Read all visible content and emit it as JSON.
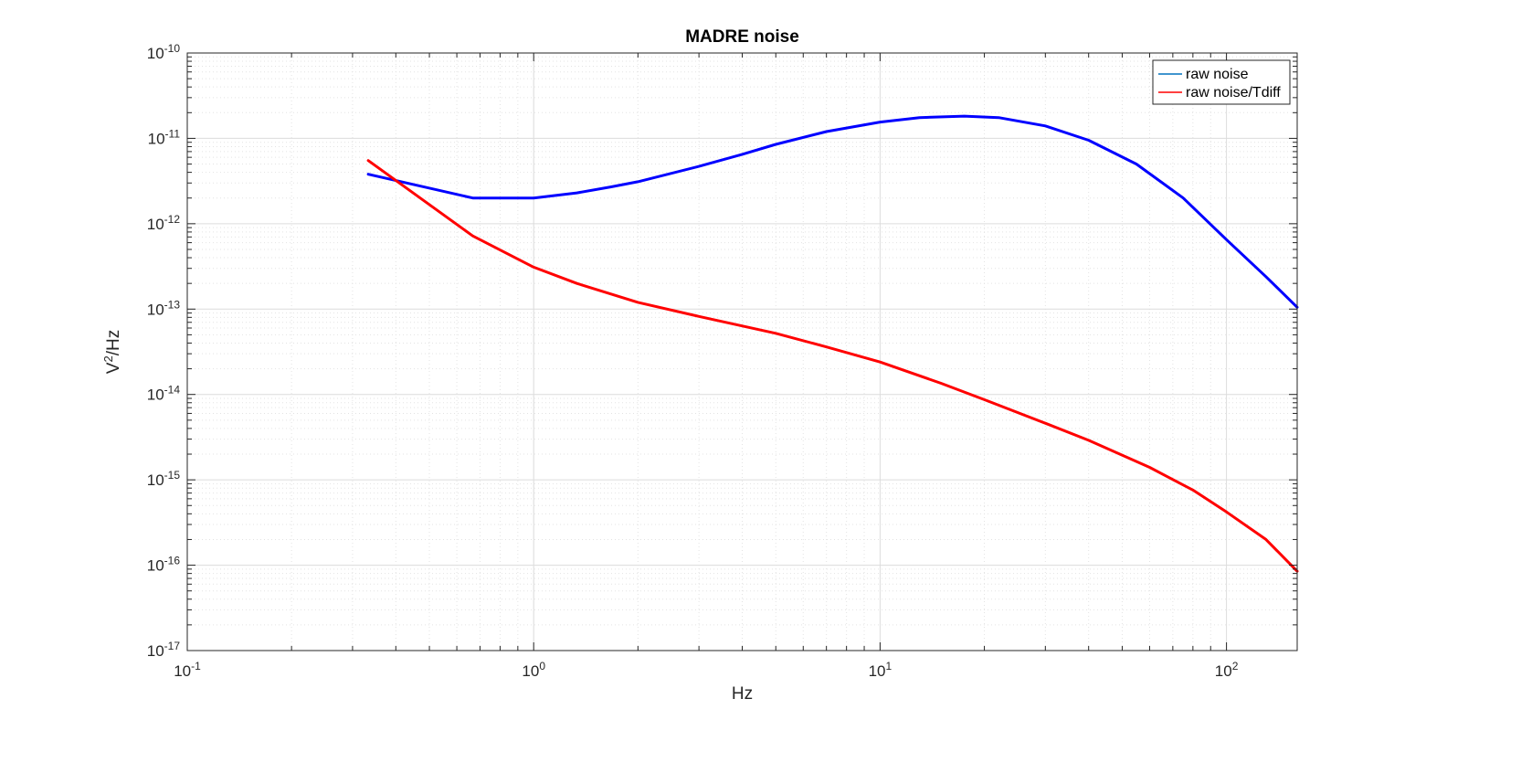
{
  "chart_data": {
    "type": "line",
    "title": "MADRE noise",
    "xlabel": "Hz",
    "ylabel_base": "V",
    "ylabel_sup": "2",
    "ylabel_rest": "/Hz",
    "xscale": "log",
    "yscale": "log",
    "xlim": [
      0.1,
      160
    ],
    "ylim": [
      1e-17,
      1e-10
    ],
    "grid": true,
    "minor_grid": true,
    "legend_position": "top-right",
    "x_ticks": [
      {
        "base": "10",
        "exp": "-1",
        "value": 0.1
      },
      {
        "base": "10",
        "exp": "0",
        "value": 1
      },
      {
        "base": "10",
        "exp": "1",
        "value": 10
      },
      {
        "base": "10",
        "exp": "2",
        "value": 100
      }
    ],
    "y_ticks": [
      {
        "base": "10",
        "exp": "-10",
        "value": 1e-10
      },
      {
        "base": "10",
        "exp": "-11",
        "value": 1e-11
      },
      {
        "base": "10",
        "exp": "-12",
        "value": 1e-12
      },
      {
        "base": "10",
        "exp": "-13",
        "value": 1e-13
      },
      {
        "base": "10",
        "exp": "-14",
        "value": 1e-14
      },
      {
        "base": "10",
        "exp": "-15",
        "value": 1e-15
      },
      {
        "base": "10",
        "exp": "-16",
        "value": 1e-16
      },
      {
        "base": "10",
        "exp": "-17",
        "value": 1e-17
      }
    ],
    "series": [
      {
        "name": "raw noise",
        "color": "#0000ff",
        "legend_color": "#0072bd",
        "x": [
          0.333,
          0.667,
          1.0,
          1.333,
          1.667,
          2.0,
          3.0,
          4.0,
          5.0,
          7.0,
          10.0,
          13.0,
          17.5,
          22.0,
          30.0,
          40.0,
          55.0,
          75.0,
          100.0,
          130.0,
          160.0
        ],
        "y": [
          3.8e-12,
          2e-12,
          2e-12,
          2.3e-12,
          2.7e-12,
          3.1e-12,
          4.7e-12,
          6.5e-12,
          8.5e-12,
          1.2e-11,
          1.55e-11,
          1.75e-11,
          1.82e-11,
          1.75e-11,
          1.4e-11,
          9.5e-12,
          5e-12,
          2e-12,
          6.5e-13,
          2.4e-13,
          1.05e-13
        ]
      },
      {
        "name": "raw noise/Tdiff",
        "color": "#ff0000",
        "legend_color": "#ff0000",
        "x": [
          0.333,
          0.667,
          1.0,
          1.333,
          2.0,
          3.0,
          5.0,
          7.0,
          10.0,
          15.0,
          20.0,
          30.0,
          40.0,
          60.0,
          80.0,
          100.0,
          130.0,
          160.0
        ],
        "y": [
          5.5e-12,
          7.2e-13,
          3.1e-13,
          2e-13,
          1.2e-13,
          8.2e-14,
          5.2e-14,
          3.6e-14,
          2.4e-14,
          1.35e-14,
          8.7e-15,
          4.6e-15,
          2.9e-15,
          1.4e-15,
          7.6e-16,
          4.2e-16,
          2e-16,
          8.5e-17
        ]
      }
    ]
  }
}
